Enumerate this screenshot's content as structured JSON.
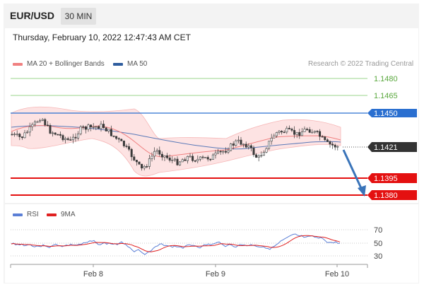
{
  "header": {
    "pair": "EUR/USD",
    "timeframe": "30 MIN",
    "datetime": "Thursday, February 10, 2022 12:47:43 AM CET"
  },
  "legend": {
    "main": [
      {
        "label": "MA 20 + Bollinger Bands",
        "color": "#f08080"
      },
      {
        "label": "MA 50",
        "color": "#2f5d9e"
      }
    ],
    "rsi": [
      {
        "label": "RSI",
        "color": "#5b7fd6"
      },
      {
        "label": "9MA",
        "color": "#e02020"
      }
    ]
  },
  "credit": "Research © 2022 Trading Central",
  "price_levels": [
    {
      "label": "1.1480",
      "value": 1.148,
      "kind": "target"
    },
    {
      "label": "1.1465",
      "value": 1.1465,
      "kind": "target"
    },
    {
      "label": "1.1450",
      "value": 1.145,
      "kind": "pivot"
    },
    {
      "label": "1.1421",
      "value": 1.1421,
      "kind": "last"
    },
    {
      "label": "1.1395",
      "value": 1.1395,
      "kind": "support"
    },
    {
      "label": "1.1380",
      "value": 1.138,
      "kind": "support"
    }
  ],
  "rsi_levels": [
    "70",
    "50",
    "30"
  ],
  "x_labels": [
    "Feb 8",
    "Feb 9",
    "Feb 10"
  ],
  "colors": {
    "target": "#7cc46a",
    "pivot": "#2a6fd0",
    "last": "#333333",
    "support": "#e41010",
    "candle_up": "#3a3a3a",
    "candle_down": "#3a3a3a",
    "band_fill": "#fde3e3",
    "arrow": "#3a74b9"
  }
}
